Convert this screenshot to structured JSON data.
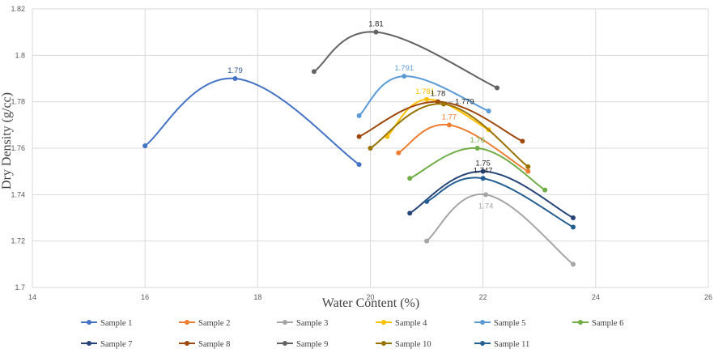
{
  "chart_data": {
    "type": "scatter",
    "title": "",
    "xlabel": "Water Content (%)",
    "ylabel": "Dry Density (g/cc)",
    "xlim": [
      14,
      26
    ],
    "ylim": [
      1.7,
      1.82
    ],
    "x_ticks": [
      "14",
      "16",
      "18",
      "20",
      "22",
      "24",
      "26"
    ],
    "y_ticks": [
      "1.7",
      "1.72",
      "1.74",
      "1.76",
      "1.78",
      "1.8",
      "1.82"
    ],
    "grid": true,
    "legend_position": "bottom",
    "series": [
      {
        "name": "Sample 1",
        "color": "#4472C4",
        "x": [
          16.0,
          17.6,
          19.8
        ],
        "y": [
          1.761,
          1.79,
          1.753
        ],
        "peak_label": "1.79",
        "peak_index": 1
      },
      {
        "name": "Sample 2",
        "color": "#ED7D31",
        "x": [
          20.5,
          21.4,
          22.8
        ],
        "y": [
          1.758,
          1.77,
          1.75
        ],
        "peak_label": "1.77",
        "peak_index": 1
      },
      {
        "name": "Sample 3",
        "color": "#A5A5A5",
        "x": [
          21.0,
          22.05,
          23.6
        ],
        "y": [
          1.72,
          1.74,
          1.71
        ],
        "peak_label": "1.74",
        "peak_index": 1
      },
      {
        "name": "Sample 4",
        "color": "#FFC000",
        "x": [
          20.3,
          21.0,
          22.1
        ],
        "y": [
          1.765,
          1.781,
          1.768
        ],
        "peak_label": "1.781",
        "peak_index": 1
      },
      {
        "name": "Sample 5",
        "color": "#5B9BD5",
        "x": [
          19.8,
          20.6,
          22.1
        ],
        "y": [
          1.774,
          1.791,
          1.776
        ],
        "peak_label": "1.791",
        "peak_index": 1
      },
      {
        "name": "Sample 6",
        "color": "#70AD47",
        "x": [
          20.7,
          21.9,
          23.1
        ],
        "y": [
          1.747,
          1.76,
          1.742
        ],
        "peak_label": "1.76",
        "peak_index": 1
      },
      {
        "name": "Sample 7",
        "color": "#264478",
        "x": [
          20.7,
          22.0,
          23.6
        ],
        "y": [
          1.732,
          1.75,
          1.73
        ],
        "peak_label": "1.75",
        "peak_index": 1
      },
      {
        "name": "Sample 8",
        "color": "#9E480E",
        "x": [
          19.8,
          21.2,
          22.7
        ],
        "y": [
          1.765,
          1.78,
          1.763
        ],
        "peak_label": "1.78",
        "peak_index": 1
      },
      {
        "name": "Sample 9",
        "color": "#636363",
        "x": [
          19.0,
          20.1,
          22.25
        ],
        "y": [
          1.793,
          1.81,
          1.786
        ],
        "peak_label": "1.81",
        "peak_index": 1
      },
      {
        "name": "Sample 10",
        "color": "#997300",
        "x": [
          20.0,
          21.3,
          22.8
        ],
        "y": [
          1.76,
          1.779,
          1.752
        ],
        "peak_label": "1.779",
        "peak_index": 1
      },
      {
        "name": "Sample 11",
        "color": "#255E91",
        "x": [
          21.0,
          22.0,
          23.6
        ],
        "y": [
          1.737,
          1.747,
          1.726
        ],
        "peak_label": "1.747",
        "peak_index": 1
      }
    ]
  }
}
